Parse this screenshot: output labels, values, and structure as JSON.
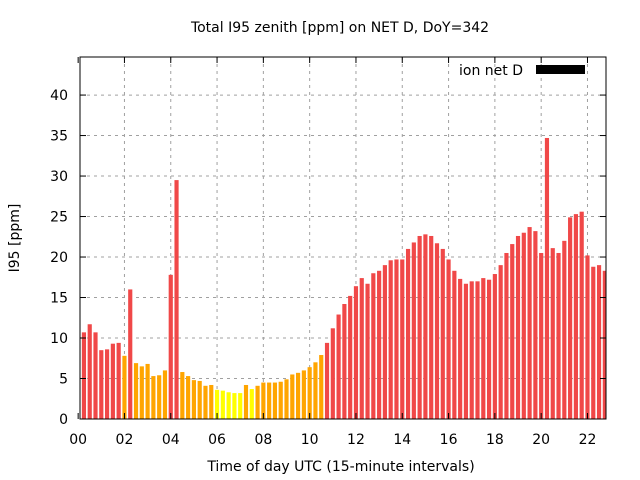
{
  "chart_data": {
    "type": "bar",
    "title": "Total I95 zenith [ppm] on NET D, DoY=342",
    "xlabel": "Time of day UTC (15-minute intervals)",
    "ylabel": "I95 [ppm]",
    "xlim": [
      0.08,
      22.8
    ],
    "ylim": [
      0,
      44.7
    ],
    "x_ticks": [
      0,
      2,
      4,
      6,
      8,
      10,
      12,
      14,
      16,
      18,
      20,
      22
    ],
    "x_tick_labels": [
      "00",
      "02",
      "04",
      "06",
      "08",
      "10",
      "12",
      "14",
      "16",
      "18",
      "20",
      "22"
    ],
    "y_ticks": [
      0,
      5,
      10,
      15,
      20,
      25,
      30,
      35,
      40
    ],
    "y_tick_labels": [
      "0",
      "5",
      "10",
      "15",
      "20",
      "25",
      "30",
      "35",
      "40"
    ],
    "grid": true,
    "legend": {
      "label": "ion net D",
      "placement": "top-right",
      "color": "#000000"
    },
    "bar_interval_hours": 0.25,
    "color_thresholds": {
      "low_max": 4,
      "mid_max": 8
    },
    "colors": {
      "low": "#ffff00",
      "mid": "#ffa500",
      "high": "#f04848"
    },
    "values": [
      10.5,
      10.7,
      11.7,
      10.7,
      8.5,
      8.6,
      9.3,
      9.4,
      7.8,
      16.0,
      6.9,
      6.5,
      6.8,
      5.3,
      5.4,
      6.0,
      17.8,
      29.5,
      5.8,
      5.3,
      4.8,
      4.7,
      4.1,
      4.2,
      3.6,
      3.5,
      3.3,
      3.2,
      3.2,
      4.2,
      3.7,
      4.1,
      4.5,
      4.5,
      4.5,
      4.6,
      4.9,
      5.5,
      5.7,
      6.0,
      6.4,
      7.0,
      7.9,
      9.4,
      11.2,
      12.9,
      14.2,
      15.2,
      16.4,
      17.4,
      16.7,
      18.0,
      18.3,
      19.0,
      19.6,
      19.7,
      19.7,
      21.0,
      21.8,
      22.6,
      22.8,
      22.6,
      21.7,
      21.0,
      19.7,
      18.3,
      17.3,
      16.7,
      17.0,
      17.0,
      17.4,
      17.2,
      17.9,
      19.0,
      20.5,
      21.6,
      22.6,
      23.0,
      23.7,
      23.2,
      20.5,
      34.7,
      21.1,
      20.5,
      22.0,
      24.9,
      25.3,
      25.6,
      20.2,
      18.8,
      19.0,
      18.3
    ]
  }
}
